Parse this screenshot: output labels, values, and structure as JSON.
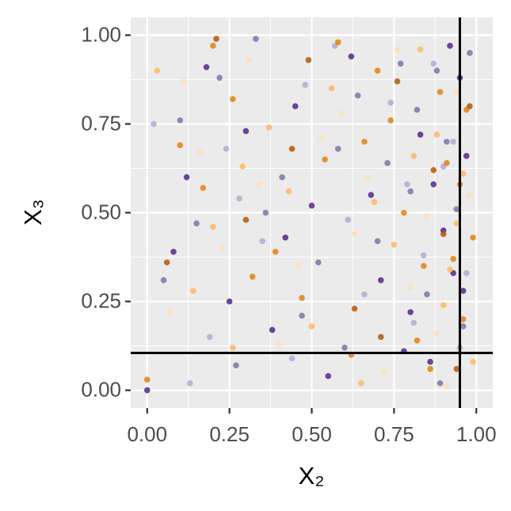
{
  "chart_data": {
    "type": "scatter",
    "x_label": "X₂",
    "y_label": "X₃",
    "xlim": [
      -0.05,
      1.05
    ],
    "ylim": [
      -0.05,
      1.05
    ],
    "xticks": [
      {
        "value": 0,
        "label": "0.00"
      },
      {
        "value": 0.25,
        "label": "0.25"
      },
      {
        "value": 0.5,
        "label": "0.50"
      },
      {
        "value": 0.75,
        "label": "0.75"
      },
      {
        "value": 1,
        "label": "1.00"
      }
    ],
    "yticks": [
      {
        "value": 0,
        "label": "0.00"
      },
      {
        "value": 0.25,
        "label": "0.25"
      },
      {
        "value": 0.5,
        "label": "0.50"
      },
      {
        "value": 0.75,
        "label": "0.75"
      },
      {
        "value": 1,
        "label": "1.00"
      }
    ],
    "minor_ticks": [
      0.125,
      0.375,
      0.625,
      0.875
    ],
    "grid": true,
    "vlines": [
      0.95
    ],
    "hlines": [
      0.105
    ],
    "series": [
      {
        "color": "#542788",
        "x": [
          0,
          0.25,
          0.5,
          0.83,
          0.95,
          0.12,
          0.38,
          0.71,
          0.9,
          0.62,
          0.45,
          0.78,
          0.93,
          0.18,
          0.3,
          0.87,
          0.55,
          0.97,
          0.08,
          0.68,
          0.8,
          0.92,
          0.42,
          0.86,
          0.96
        ],
        "values": [
          0,
          0.25,
          0.52,
          0.72,
          0.88,
          0.6,
          0.17,
          0.31,
          0.45,
          0.94,
          0.8,
          0.11,
          0.33,
          0.91,
          0.73,
          0.58,
          0.04,
          0.66,
          0.39,
          0.55,
          0.22,
          0.97,
          0.43,
          0.08,
          0.28
        ]
      },
      {
        "color": "#8073ac",
        "x": [
          0.05,
          0.22,
          0.41,
          0.6,
          0.82,
          0.94,
          0.33,
          0.73,
          0.89,
          0.15,
          0.52,
          0.77,
          0.96,
          0.27,
          0.64,
          0.85,
          0.91,
          0.47,
          0.1,
          0.7,
          0.98,
          0.58,
          0.36,
          0.88,
          0.8
        ],
        "values": [
          0.31,
          0.88,
          0.6,
          0.12,
          0.79,
          0.51,
          0.99,
          0.64,
          0.02,
          0.47,
          0.36,
          0.92,
          0.18,
          0.07,
          0.83,
          0.27,
          0.7,
          0.21,
          0.76,
          0.42,
          0.95,
          0.68,
          0.5,
          0.9,
          0.56
        ]
      },
      {
        "color": "#b2abd2",
        "x": [
          0.02,
          0.19,
          0.35,
          0.48,
          0.66,
          0.79,
          0.9,
          0.95,
          0.28,
          0.57,
          0.84,
          0.13,
          0.74,
          0.93,
          0.44,
          0.61,
          0.87,
          0.97,
          0.24,
          0.81
        ],
        "values": [
          0.75,
          0.15,
          0.42,
          0.86,
          0.27,
          0.58,
          0.63,
          0.12,
          0.54,
          0.97,
          0.38,
          0.02,
          0.81,
          0.7,
          0.09,
          0.48,
          0.92,
          0.33,
          0.68,
          0.19
        ]
      },
      {
        "color": "#fee0b6",
        "x": [
          0.07,
          0.16,
          0.31,
          0.46,
          0.59,
          0.72,
          0.85,
          0.94,
          0.23,
          0.4,
          0.67,
          0.8,
          0.91,
          0.53,
          0.98,
          0.11,
          0.76,
          0.88,
          0.34,
          0.63
        ],
        "values": [
          0.22,
          0.67,
          0.93,
          0.35,
          0.78,
          0.05,
          0.49,
          0.84,
          0.4,
          0.13,
          0.6,
          0.29,
          0.01,
          0.71,
          0.55,
          0.87,
          0.96,
          0.16,
          0.58,
          0.44
        ]
      },
      {
        "color": "#fdb863",
        "x": [
          0.03,
          0.2,
          0.37,
          0.5,
          0.69,
          0.83,
          0.92,
          0.96,
          0.14,
          0.29,
          0.56,
          0.75,
          0.88,
          0.99,
          0.43,
          0.65,
          0.81,
          0.9,
          0.26,
          0.94
        ],
        "values": [
          0.9,
          0.46,
          0.74,
          0.18,
          0.53,
          0.96,
          0.34,
          0.61,
          0.28,
          0.63,
          0.85,
          0.41,
          0.72,
          0.08,
          0.56,
          0.02,
          0.66,
          0.24,
          0.12,
          0.47
        ]
      },
      {
        "color": "#e08214",
        "x": [
          0.0,
          0.1,
          0.26,
          0.39,
          0.54,
          0.7,
          0.82,
          0.93,
          0.97,
          0.17,
          0.47,
          0.62,
          0.78,
          0.89,
          0.95,
          0.32,
          0.86,
          0.74,
          0.99,
          0.58,
          0.91,
          0.2,
          0.84,
          0.96,
          0.66
        ],
        "values": [
          0.03,
          0.69,
          0.82,
          0.39,
          0.65,
          0.9,
          0.14,
          0.37,
          0.79,
          0.57,
          0.26,
          0.1,
          0.5,
          0.84,
          0.58,
          0.32,
          0.06,
          0.76,
          0.43,
          0.98,
          0.64,
          0.97,
          0.35,
          0.2,
          0.7
        ]
      },
      {
        "color": "#b35806",
        "x": [
          0.06,
          0.3,
          0.49,
          0.63,
          0.76,
          0.87,
          0.94,
          0.98,
          0.21,
          0.44,
          0.71,
          0.9
        ],
        "values": [
          0.36,
          0.48,
          0.93,
          0.23,
          0.87,
          0.62,
          0.06,
          0.8,
          0.99,
          0.68,
          0.15,
          0.44
        ]
      }
    ]
  }
}
